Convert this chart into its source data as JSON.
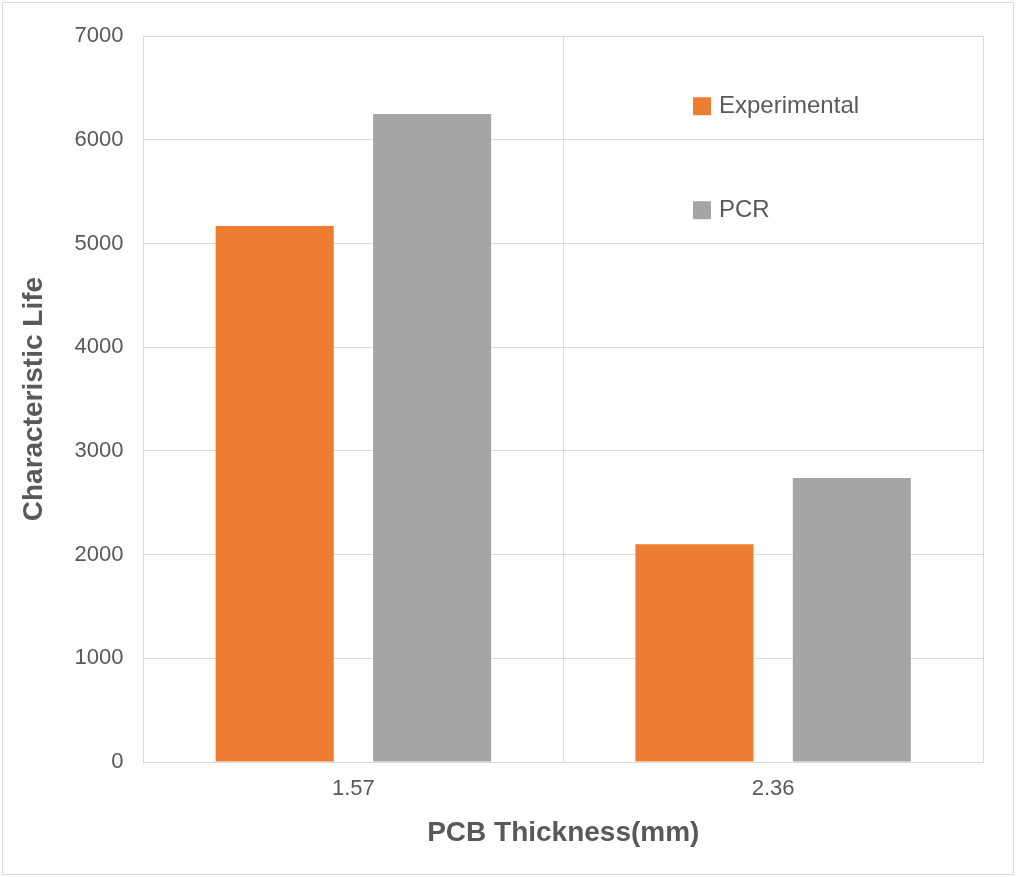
{
  "chart_data": {
    "type": "bar",
    "xlabel": "PCB Thickness(mm)",
    "ylabel": "Characteristic Life",
    "categories": [
      "1.57",
      "2.36"
    ],
    "series": [
      {
        "name": "Experimental",
        "color": "#ed7d31",
        "values": [
          5170,
          2100
        ]
      },
      {
        "name": "PCR",
        "color": "#a5a5a5",
        "values": [
          6250,
          2740
        ]
      }
    ],
    "ylim": [
      0,
      7000
    ],
    "yticks": [
      0,
      1000,
      2000,
      3000,
      4000,
      5000,
      6000,
      7000
    ],
    "grid": true,
    "legend": "top right"
  }
}
